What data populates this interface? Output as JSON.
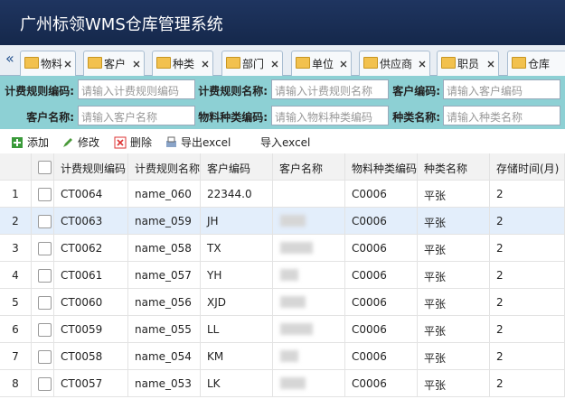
{
  "header": {
    "title": "广州标领WMS仓库管理系统"
  },
  "tabs": {
    "scroll": "«",
    "items": [
      "物料",
      "客户",
      "种类",
      "部门",
      "单位",
      "供应商",
      "职员",
      "仓库"
    ]
  },
  "search": {
    "fields": [
      {
        "label": "计费规则编码:",
        "placeholder": "请输入计费规则编码"
      },
      {
        "label": "计费规则名称:",
        "placeholder": "请输入计费规则名称"
      },
      {
        "label": "客户编码:",
        "placeholder": "请输入客户编码"
      },
      {
        "label": "客户名称:",
        "placeholder": "请输入客户名称"
      },
      {
        "label": "物料种类编码:",
        "placeholder": "请输入物料种类编码"
      },
      {
        "label": "种类名称:",
        "placeholder": "请输入种类名称"
      }
    ]
  },
  "toolbar": {
    "buttons": [
      "添加",
      "修改",
      "删除",
      "导出excel",
      "导入excel"
    ]
  },
  "table": {
    "columns": [
      "计费规则编码",
      "计费规则名称",
      "客户编码",
      "客户名称",
      "物料种类编码",
      "种类名称",
      "存储时间(月)"
    ],
    "rows": [
      {
        "no": "1",
        "cells": [
          "CT0064",
          "name_060",
          "22344.0",
          null,
          "C0006",
          "平张",
          "2"
        ]
      },
      {
        "no": "2",
        "cells": [
          "CT0063",
          "name_059",
          "JH",
          null,
          "C0006",
          "平张",
          "2"
        ]
      },
      {
        "no": "3",
        "cells": [
          "CT0062",
          "name_058",
          "TX",
          null,
          "C0006",
          "平张",
          "2"
        ]
      },
      {
        "no": "4",
        "cells": [
          "CT0061",
          "name_057",
          "YH",
          null,
          "C0006",
          "平张",
          "2"
        ]
      },
      {
        "no": "5",
        "cells": [
          "CT0060",
          "name_056",
          "XJD",
          null,
          "C0006",
          "平张",
          "2"
        ]
      },
      {
        "no": "6",
        "cells": [
          "CT0059",
          "name_055",
          "LL",
          null,
          "C0006",
          "平张",
          "2"
        ]
      },
      {
        "no": "7",
        "cells": [
          "CT0058",
          "name_054",
          "KM",
          null,
          "C0006",
          "平张",
          "2"
        ]
      },
      {
        "no": "8",
        "cells": [
          "CT0057",
          "name_053",
          "LK",
          null,
          "C0006",
          "平张",
          "2"
        ]
      }
    ]
  }
}
